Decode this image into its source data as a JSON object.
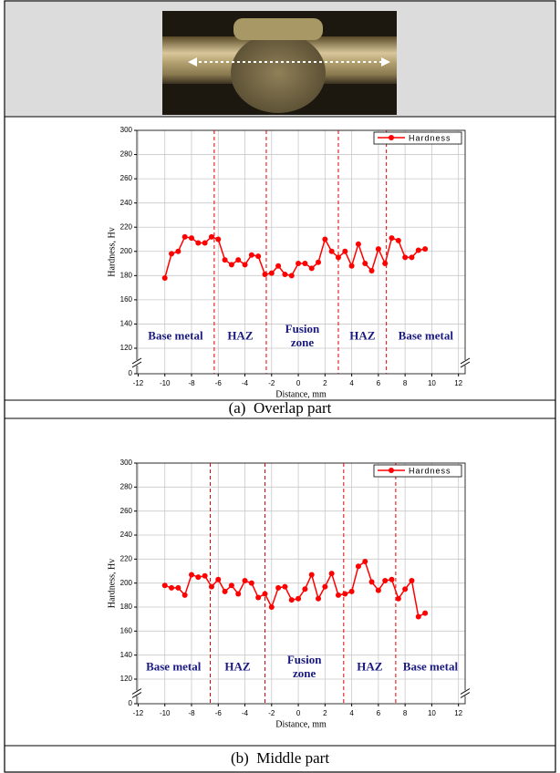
{
  "chart_data": [
    {
      "type": "line",
      "caption": "(a)  Overlap part",
      "ylabel": "Hardness, Hv",
      "xlabel": "Distance, mm",
      "x": [
        -10,
        -9.5,
        -9,
        -8.5,
        -8,
        -7.5,
        -7,
        -6.5,
        -6,
        -5.5,
        -5,
        -4.5,
        -4,
        -3.5,
        -3,
        -2.5,
        -2,
        -1.5,
        -1,
        -0.5,
        0,
        0.5,
        1,
        1.5,
        2,
        2.5,
        3,
        3.5,
        4,
        4.5,
        5,
        5.5,
        6,
        6.5,
        7,
        7.5,
        8,
        8.5,
        9,
        9.5
      ],
      "series": [
        {
          "name": "Hardness",
          "color": "#ff0000",
          "values": [
            178,
            198,
            200,
            212,
            211,
            207,
            207,
            212,
            210,
            193,
            189,
            193,
            189,
            197,
            196,
            181,
            182,
            188,
            181,
            180,
            190,
            190,
            186,
            191,
            210,
            200,
            195,
            200,
            188,
            206,
            190,
            184,
            202,
            190,
            211,
            209,
            195,
            195,
            201,
            202
          ]
        }
      ],
      "xlim": [
        -12.1,
        12.5
      ],
      "xticks": [
        -12,
        -10,
        -8,
        -6,
        -4,
        -2,
        0,
        2,
        4,
        6,
        8,
        10,
        12
      ],
      "ylim": [
        0,
        300
      ],
      "yticks": [
        0,
        120,
        140,
        160,
        180,
        200,
        220,
        240,
        260,
        280,
        300
      ],
      "axis_break": true,
      "grid": true,
      "boundaries": [
        -6.3,
        -2.4,
        3.0,
        6.6
      ],
      "zones": [
        "Base metal",
        "HAZ",
        "Fusion zone",
        "HAZ",
        "Base metal"
      ],
      "legend": "top-right"
    },
    {
      "type": "line",
      "caption": "(b)  Middle part",
      "ylabel": "Hardness, Hv",
      "xlabel": "Distance, mm",
      "x": [
        -10,
        -9.5,
        -9,
        -8.5,
        -8,
        -7.5,
        -7,
        -6.5,
        -6,
        -5.5,
        -5,
        -4.5,
        -4,
        -3.5,
        -3,
        -2.5,
        -2,
        -1.5,
        -1,
        -0.5,
        0,
        0.5,
        1,
        1.5,
        2,
        2.5,
        3,
        3.5,
        4,
        4.5,
        5,
        5.5,
        6,
        6.5,
        7,
        7.5,
        8,
        8.5,
        9,
        9.5
      ],
      "series": [
        {
          "name": "Hardness",
          "color": "#ff0000",
          "values": [
            198,
            196,
            196,
            190,
            207,
            205,
            206,
            197,
            203,
            193,
            198,
            191,
            202,
            200,
            188,
            191,
            180,
            196,
            197,
            186,
            187,
            195,
            207,
            187,
            197,
            208,
            190,
            191,
            193,
            214,
            218,
            201,
            194,
            202,
            203,
            187,
            195,
            202,
            172,
            175
          ]
        }
      ],
      "xlim": [
        -12.1,
        12.5
      ],
      "xticks": [
        -12,
        -10,
        -8,
        -6,
        -4,
        -2,
        0,
        2,
        4,
        6,
        8,
        10,
        12
      ],
      "ylim": [
        0,
        300
      ],
      "yticks": [
        0,
        120,
        140,
        160,
        180,
        200,
        220,
        240,
        260,
        280,
        300
      ],
      "axis_break": true,
      "grid": true,
      "boundaries": [
        -6.6,
        -2.5,
        3.4,
        7.3
      ],
      "zones": [
        "Base metal",
        "HAZ",
        "Fusion zone",
        "HAZ",
        "Base metal"
      ],
      "legend": "top-right"
    }
  ]
}
